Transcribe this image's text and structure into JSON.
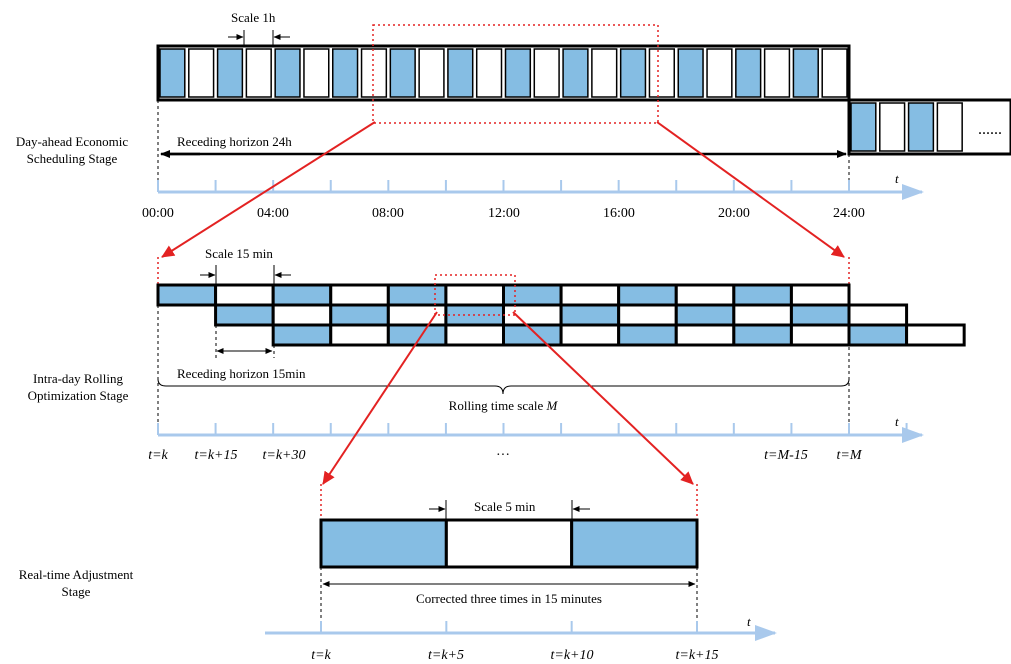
{
  "colors": {
    "cell_fill": "#85bde3",
    "axis": "#a9c9ec",
    "red": "#e32222",
    "black": "#000000"
  },
  "stage1": {
    "label_line1": "Day-ahead Economic",
    "label_line2": "Scheduling Stage",
    "scale_label": "Scale 1h",
    "horizon_label": "Receding horizon 24h",
    "axis_var": "t",
    "time_labels": [
      "00:00",
      "04:00",
      "08:00",
      "12:00",
      "16:00",
      "20:00",
      "24:00"
    ],
    "continuation": "......",
    "cells_per_day": 24
  },
  "stage2": {
    "label_line1": "Intra-day Rolling",
    "label_line2": "Optimization Stage",
    "scale_label": "Scale 15 min",
    "horizon_label": "Receding horizon 15min",
    "rolling_label_text": "Rolling time scale ",
    "rolling_label_var": "M",
    "axis_var": "t",
    "ellipsis": "···",
    "tick_labels": [
      "t=k",
      "t=k+15",
      "t=k+30",
      "t=M-15",
      "t=M"
    ],
    "rows": 3,
    "cells_per_row": 12
  },
  "stage3": {
    "label_line1": "Real-time Adjustment",
    "label_line2": "Stage",
    "scale_label": "Scale 5 min",
    "corrected_label": "Corrected three times in 15 minutes",
    "axis_var": "t",
    "tick_labels": [
      "t=k",
      "t=k+5",
      "t=k+10",
      "t=k+15"
    ],
    "cells": 3
  }
}
